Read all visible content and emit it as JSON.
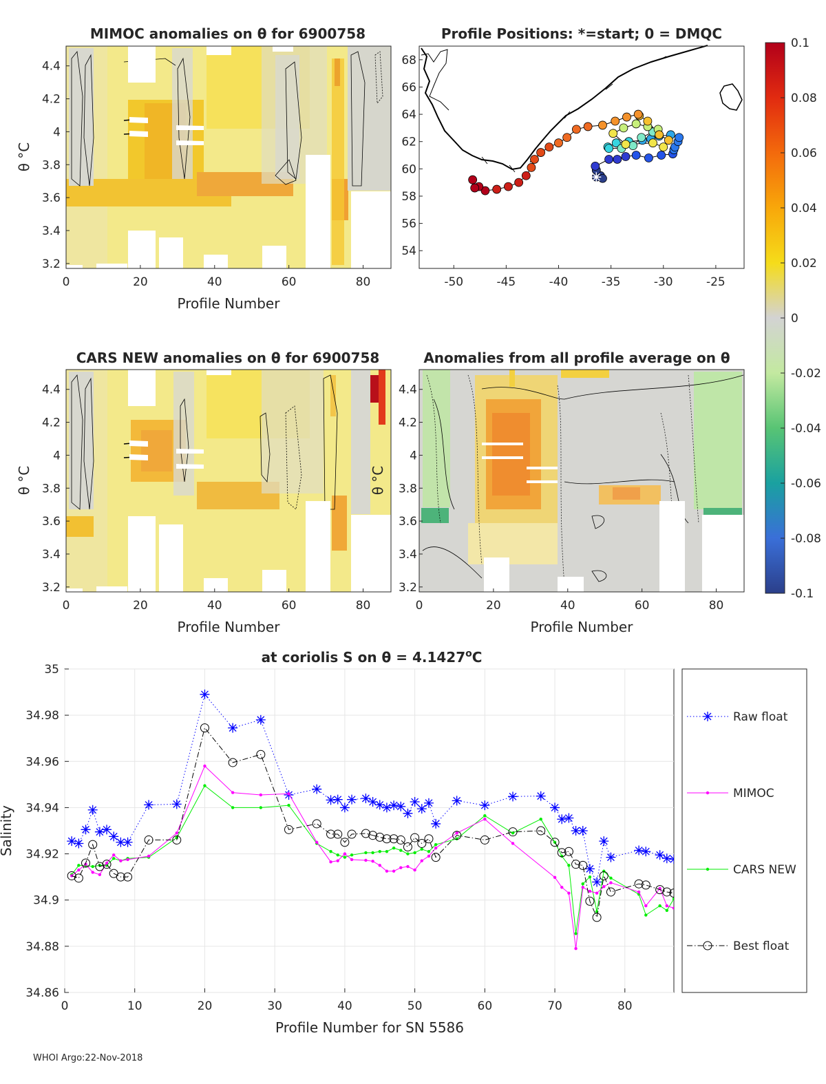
{
  "colorbar": {
    "tick_labels": [
      "0.1",
      "0.08",
      "0.06",
      "0.04",
      "0.02",
      "0",
      "-0.02",
      "-0.04",
      "-0.06",
      "-0.08",
      "-0.1"
    ],
    "range": [
      -0.1,
      0.1
    ]
  },
  "panel_mimoc": {
    "title": "MIMOC anomalies on θ  for 6900758",
    "xlabel": "Profile Number",
    "ylabel": "θ °C",
    "xticks": [
      "0",
      "20",
      "40",
      "60",
      "80"
    ],
    "yticks": [
      "4.4",
      "4.2",
      "4",
      "3.8",
      "3.6",
      "3.4",
      "3.2"
    ]
  },
  "panel_positions": {
    "title": "Profile Positions: *=start; 0 = DMQC",
    "xticks": [
      "-50",
      "-45",
      "-40",
      "-35",
      "-30",
      "-25"
    ],
    "yticks": [
      "68",
      "66",
      "64",
      "62",
      "60",
      "58",
      "56",
      "54"
    ]
  },
  "panel_cars": {
    "title": "CARS NEW anomalies on θ for 6900758",
    "xlabel": "Profile Number",
    "ylabel": "θ °C",
    "xticks": [
      "0",
      "20",
      "40",
      "60",
      "80"
    ],
    "yticks": [
      "4.4",
      "4.2",
      "4",
      "3.8",
      "3.6",
      "3.4",
      "3.2"
    ]
  },
  "panel_allavg": {
    "title": "Anomalies from all profile average on θ",
    "xlabel": "Profile Number",
    "ylabel": "θ °C",
    "xticks": [
      "0",
      "20",
      "40",
      "60",
      "80"
    ],
    "yticks": [
      "4.4",
      "4.2",
      "4",
      "3.8",
      "3.6",
      "3.4",
      "3.2"
    ]
  },
  "chart_data": {
    "type": "line",
    "title": "at coriolis S on θ = 4.1427°C",
    "xlabel": "Profile Number for SN 5586",
    "ylabel": "Salinity",
    "xlim": [
      0,
      87
    ],
    "ylim": [
      34.86,
      35.0
    ],
    "xticks": [
      0,
      10,
      20,
      30,
      40,
      50,
      60,
      70,
      80
    ],
    "yticks": [
      34.86,
      34.88,
      34.9,
      34.92,
      34.94,
      34.96,
      34.98,
      35
    ],
    "ytick_labels": [
      "34.86",
      "34.88",
      "34.9",
      "34.92",
      "34.94",
      "34.96",
      "34.98",
      "35"
    ],
    "grid": true,
    "legend_position": "right",
    "series": [
      {
        "name": "Raw float",
        "color": "#0000ff",
        "marker": "star",
        "line": "dotted",
        "x": [
          1,
          2,
          3,
          4,
          5,
          6,
          7,
          8,
          9,
          12,
          16,
          20,
          24,
          28,
          32,
          36,
          38,
          39,
          40,
          41,
          43,
          44,
          45,
          46,
          47,
          48,
          49,
          50,
          51,
          52,
          53,
          56,
          60,
          64,
          68,
          70,
          71,
          72,
          73,
          74,
          75,
          76,
          77,
          78,
          82,
          83,
          85,
          86,
          87
        ],
        "y": [
          34.9255,
          34.9245,
          34.9305,
          34.939,
          34.9295,
          34.9305,
          34.9275,
          34.925,
          34.925,
          34.9412,
          34.9415,
          34.989,
          34.9745,
          34.978,
          34.9455,
          34.948,
          34.9433,
          34.9435,
          34.94,
          34.9435,
          34.944,
          34.9425,
          34.9412,
          34.94,
          34.941,
          34.9405,
          34.9375,
          34.9425,
          34.9395,
          34.942,
          34.933,
          34.943,
          34.941,
          34.9448,
          34.945,
          34.94,
          34.935,
          34.9355,
          34.93,
          34.93,
          34.9135,
          34.9078,
          34.9255,
          34.9185,
          34.9215,
          34.921,
          34.9195,
          34.918,
          34.9177
        ]
      },
      {
        "name": "MIMOC",
        "color": "#ff00ff",
        "marker": "dot",
        "line": "solid",
        "x": [
          1,
          2,
          3,
          4,
          5,
          6,
          7,
          8,
          9,
          12,
          16,
          20,
          24,
          28,
          32,
          36,
          38,
          39,
          40,
          41,
          43,
          44,
          45,
          46,
          47,
          48,
          49,
          50,
          51,
          52,
          53,
          56,
          60,
          64,
          70,
          71,
          72,
          73,
          74,
          75,
          76,
          77,
          78,
          82,
          83,
          85,
          86,
          87
        ],
        "y": [
          34.9105,
          34.913,
          34.9155,
          34.912,
          34.911,
          34.916,
          34.9195,
          34.917,
          34.9175,
          34.919,
          34.929,
          34.958,
          34.9465,
          34.9455,
          34.946,
          34.925,
          34.9165,
          34.917,
          34.92,
          34.9175,
          34.9172,
          34.9168,
          34.915,
          34.9125,
          34.9125,
          34.914,
          34.9145,
          34.913,
          34.917,
          34.919,
          34.9225,
          34.929,
          34.935,
          34.9245,
          34.9098,
          34.9055,
          34.903,
          34.879,
          34.9055,
          34.9038,
          34.903,
          34.9058,
          34.9075,
          34.9035,
          34.8975,
          34.905,
          34.8975,
          34.8965
        ]
      },
      {
        "name": "CARS NEW",
        "color": "#00ee00",
        "marker": "dot",
        "line": "solid",
        "x": [
          1,
          2,
          3,
          4,
          5,
          6,
          7,
          8,
          9,
          12,
          16,
          20,
          24,
          28,
          32,
          36,
          38,
          39,
          40,
          41,
          43,
          44,
          45,
          46,
          47,
          48,
          49,
          50,
          51,
          52,
          53,
          56,
          60,
          64,
          68,
          70,
          71,
          72,
          73,
          74,
          75,
          76,
          77,
          78,
          82,
          83,
          85,
          86,
          87
        ],
        "y": [
          34.911,
          34.915,
          34.915,
          34.9145,
          34.915,
          34.915,
          34.918,
          34.917,
          34.918,
          34.9185,
          34.927,
          34.9495,
          34.94,
          34.94,
          34.941,
          34.9245,
          34.921,
          34.9195,
          34.9185,
          34.9195,
          34.9205,
          34.9205,
          34.921,
          34.921,
          34.9225,
          34.9215,
          34.92,
          34.9205,
          34.922,
          34.921,
          34.924,
          34.9265,
          34.9365,
          34.929,
          34.935,
          34.925,
          34.919,
          34.915,
          34.8855,
          34.907,
          34.91,
          34.895,
          34.9125,
          34.9095,
          34.9025,
          34.8935,
          34.8975,
          34.8955,
          34.9005
        ]
      },
      {
        "name": "Best float",
        "color": "#000000",
        "marker": "circle",
        "line": "dashdot",
        "x": [
          1,
          2,
          3,
          4,
          5,
          6,
          7,
          8,
          9,
          12,
          16,
          20,
          24,
          28,
          32,
          36,
          38,
          39,
          40,
          41,
          43,
          44,
          45,
          46,
          47,
          48,
          49,
          50,
          51,
          52,
          53,
          56,
          60,
          64,
          68,
          70,
          71,
          72,
          73,
          74,
          75,
          76,
          77,
          78,
          82,
          83,
          85,
          86,
          87
        ],
        "y": [
          34.9105,
          34.9095,
          34.916,
          34.924,
          34.9145,
          34.9155,
          34.9115,
          34.91,
          34.91,
          34.926,
          34.926,
          34.9745,
          34.9595,
          34.963,
          34.9305,
          34.933,
          34.9285,
          34.9285,
          34.925,
          34.9285,
          34.9288,
          34.928,
          34.9272,
          34.9265,
          34.9265,
          34.926,
          34.923,
          34.927,
          34.9245,
          34.9265,
          34.9185,
          34.928,
          34.926,
          34.9295,
          34.93,
          34.925,
          34.9205,
          34.921,
          34.9155,
          34.915,
          34.8995,
          34.8925,
          34.9105,
          34.9035,
          34.907,
          34.9065,
          34.9045,
          34.9035,
          34.903
        ]
      }
    ]
  },
  "footer": {
    "text": "WHOI Argo:22-Nov-2018"
  }
}
